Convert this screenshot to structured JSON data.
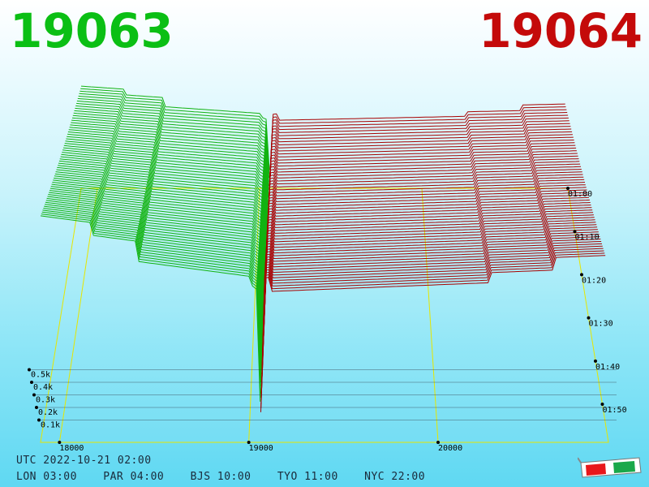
{
  "header": {
    "bid_price": "19063",
    "ask_price": "19064",
    "bid_color": "#0bbf14",
    "ask_color": "#c40a0a"
  },
  "footer": {
    "utc": "UTC 2022-10-21 02:00",
    "zones": [
      "LON 03:00",
      "PAR 04:00",
      "BJS 10:00",
      "TYO 11:00",
      "NYC 22:00"
    ]
  },
  "icons": {
    "glasses": "3d-glasses-icon"
  },
  "chart_data": {
    "type": "3d-orderbook-depth",
    "mid_price": 19063.5,
    "x_ticks": [
      "18000",
      "19000",
      "20000"
    ],
    "x_tick_values": [
      18000,
      19000,
      20000
    ],
    "y_ticks": [
      "0.1k",
      "0.2k",
      "0.3k",
      "0.4k",
      "0.5k"
    ],
    "y_tick_values": [
      100,
      200,
      300,
      400,
      500
    ],
    "time_ticks": [
      "01:00",
      "01:10",
      "01:20",
      "01:30",
      "01:40",
      "01:50"
    ],
    "bid_color": "#12b312",
    "ask_color": "#a80000",
    "grid": true,
    "slices": 60,
    "bid_volume_near_mid": [
      60,
      300,
      330
    ],
    "ask_volume_near_mid": [
      60,
      330,
      300
    ]
  }
}
